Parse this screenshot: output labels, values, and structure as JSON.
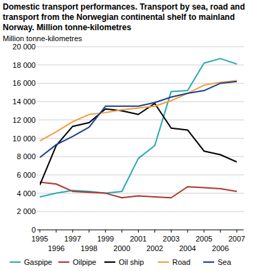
{
  "chart_data": {
    "type": "line",
    "title": "Domestic transport performances. Transport by sea, road and transport from the Norwegian continental shelf to mainland Norway. Million tonne-kilometres",
    "y_label": "Million tonne-kilometres",
    "x": [
      1995,
      1996,
      1997,
      1998,
      1999,
      2000,
      2001,
      2002,
      2003,
      2004,
      2005,
      2006,
      2007
    ],
    "xlim": [
      1995,
      2007
    ],
    "xticks": [
      1995,
      1996,
      1997,
      1998,
      1999,
      2000,
      2001,
      2002,
      2003,
      2004,
      2005,
      2006,
      2007
    ],
    "ylim": [
      0,
      20000
    ],
    "yticks": [
      0,
      {
        "value": 2000,
        "label": "2 000"
      },
      {
        "value": 4000,
        "label": "4 000"
      },
      {
        "value": 6000,
        "label": "6 000"
      },
      {
        "value": 8000,
        "label": "8 000"
      },
      {
        "value": 10000,
        "label": "10 000"
      },
      {
        "value": 12000,
        "label": "12 000"
      },
      {
        "value": 14000,
        "label": "14 000"
      },
      {
        "value": 16000,
        "label": "16 000"
      },
      {
        "value": 18000,
        "label": "18 000"
      },
      {
        "value": 20000,
        "label": "20 000"
      }
    ],
    "grid": true,
    "legend": "bottom",
    "series": [
      {
        "name": "Gaspipe",
        "color": "#2aa9b5",
        "values": [
          3600,
          4000,
          4300,
          4200,
          4000,
          4200,
          7800,
          9200,
          15100,
          15200,
          18200,
          18700,
          18100
        ]
      },
      {
        "name": "Oilpipe",
        "color": "#b0362b",
        "values": [
          5200,
          5000,
          4200,
          4100,
          4000,
          3500,
          3700,
          3600,
          3500,
          4700,
          4600,
          4500,
          4200
        ]
      },
      {
        "name": "Oil ship",
        "color": "#000000",
        "values": [
          4900,
          9200,
          11300,
          11700,
          13200,
          13000,
          12600,
          13800,
          11100,
          10900,
          8600,
          8200,
          7400
        ]
      },
      {
        "name": "Road",
        "color": "#f0a040",
        "values": [
          9700,
          10700,
          11800,
          12600,
          12800,
          13100,
          13300,
          13500,
          14100,
          14900,
          15800,
          16100,
          16300
        ]
      },
      {
        "name": "Sea",
        "color": "#1f3f8f",
        "values": [
          7900,
          9300,
          10200,
          11200,
          13500,
          13500,
          13500,
          13900,
          14500,
          14900,
          15200,
          16000,
          16200
        ]
      }
    ]
  }
}
